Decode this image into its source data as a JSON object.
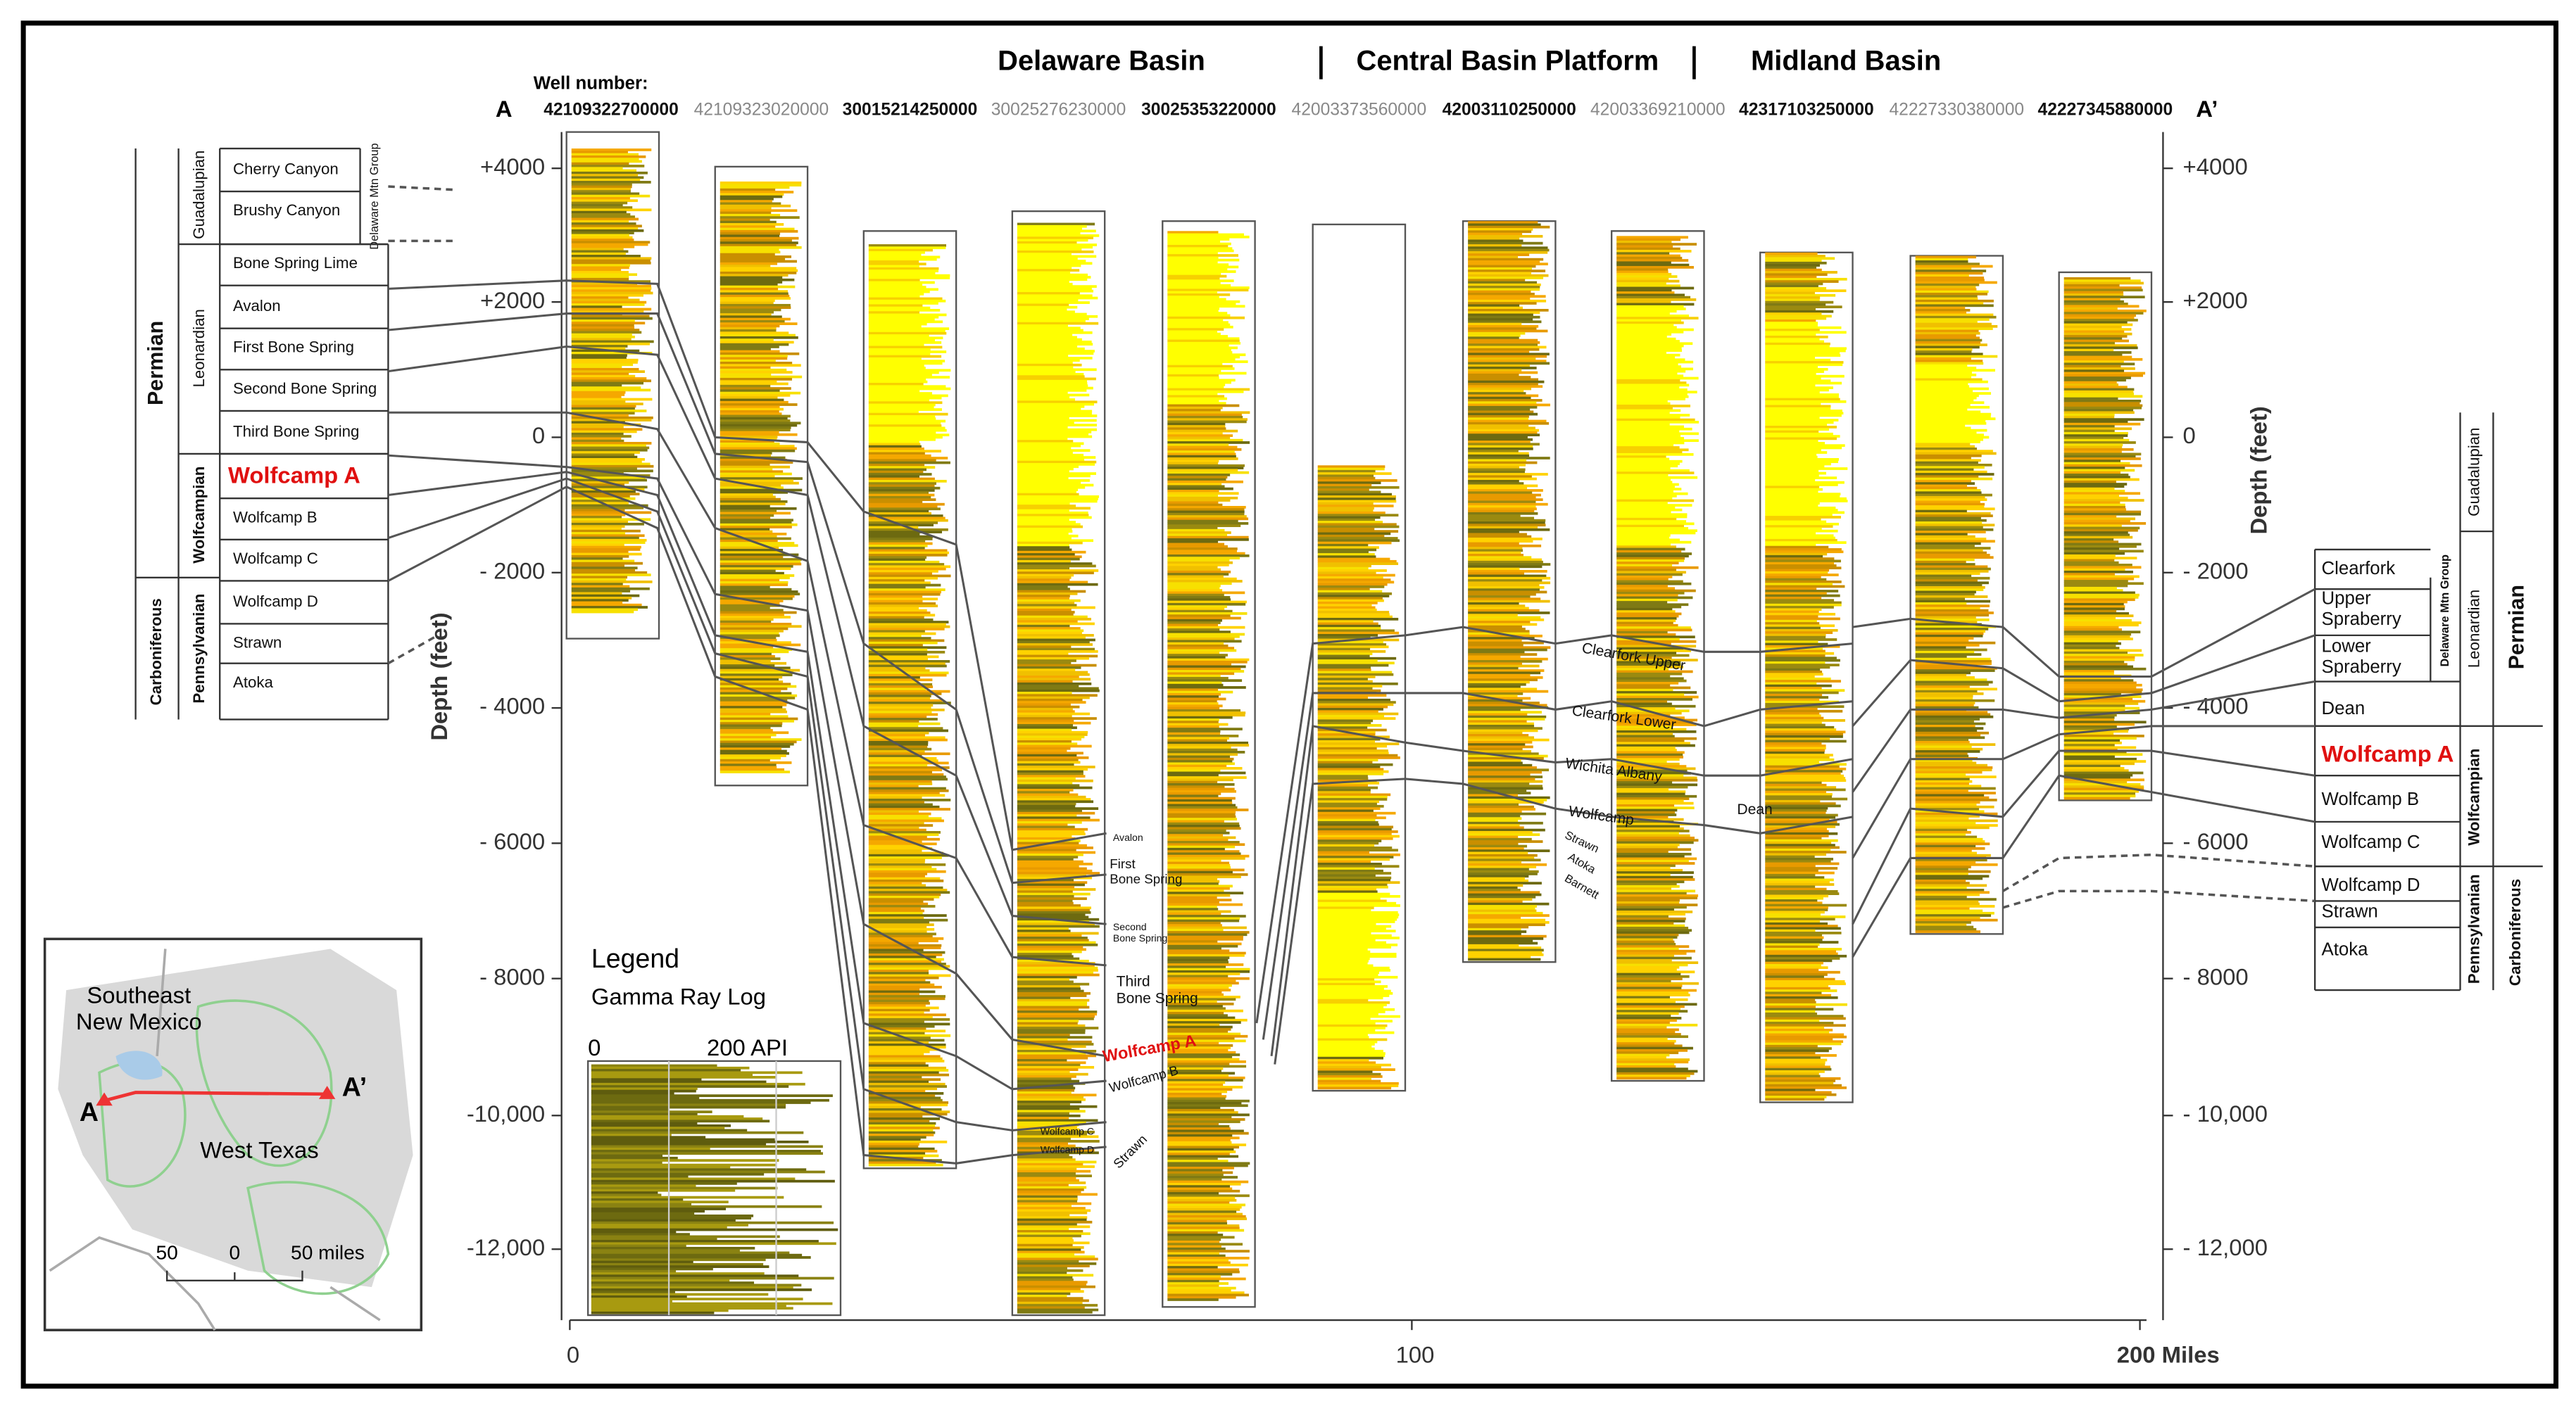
{
  "header": {
    "basins": [
      "Delaware Basin",
      "Central Basin Platform",
      "Midland Basin"
    ],
    "well_label": "Well number:",
    "left_end": "A",
    "right_end": "A’",
    "wells": [
      "42109322700000",
      "42109323020000",
      "30015214250000",
      "30025276230000",
      "30025353220000",
      "42003373560000",
      "42003110250000",
      "42003369210000",
      "42317103250000",
      "42227330380000",
      "42227345880000"
    ]
  },
  "left_axis": {
    "label": "Depth (feet)",
    "ticks": [
      "+4000",
      "+2000",
      "0",
      "- 2000",
      "- 4000",
      "- 6000",
      "- 8000",
      "-10,000",
      "-12,000"
    ]
  },
  "right_axis": {
    "label": "Depth (feet)",
    "ticks": [
      "+4000",
      "+2000",
      "0",
      "- 2000",
      "- 4000",
      "- 6000",
      "- 8000",
      "- 10,000",
      "- 12,000"
    ]
  },
  "x_axis": {
    "ticks": [
      "0",
      "100",
      "200 Miles"
    ]
  },
  "left_column": {
    "systems": [
      "Permian",
      "Carboniferous"
    ],
    "series": [
      "Guadalupian",
      "Leonardian",
      "Wolfcampian",
      "Pennsylvanian"
    ],
    "group": "Delaware Mtn Group",
    "formations": [
      "Cherry Canyon",
      "Brushy Canyon",
      "Bone Spring Lime",
      "Avalon",
      "First Bone Spring",
      "Second Bone Spring",
      "Third Bone Spring",
      "Wolfcamp A",
      "Wolfcamp B",
      "Wolfcamp C",
      "Wolfcamp D",
      "Strawn",
      "Atoka"
    ]
  },
  "right_column": {
    "systems": [
      "Permian",
      "Carboniferous"
    ],
    "series": [
      "Guadalupian",
      "Leonardian",
      "Wolfcampian",
      "Pennsylvanian"
    ],
    "group": "Delaware Mtn Group",
    "formations": [
      "Clearfork",
      "Upper Spraberry",
      "Lower Spraberry",
      "Dean",
      "Wolfcamp A",
      "Wolfcamp B",
      "Wolfcamp C",
      "Wolfcamp D",
      "Strawn",
      "Atoka"
    ]
  },
  "delaware_labels": [
    "Avalon",
    "First Bone Spring",
    "Second Bone Spring",
    "Third Bone Spring",
    "Wolfcamp A",
    "Wolfcamp B",
    "Wolfcamp C",
    "Wolfcamp D",
    "Strawn"
  ],
  "platform_labels": [
    "Clearfork Upper",
    "Clearfork Lower",
    "Wichita Albany",
    "Wolfcamp",
    "Strawn",
    "Atoka",
    "Barnett",
    "Dean"
  ],
  "legend": {
    "title": "Legend",
    "subtitle": "Gamma Ray Log",
    "scale": [
      "0",
      "200 API"
    ]
  },
  "map": {
    "regions": [
      "Southeast New Mexico",
      "West Texas"
    ],
    "points": [
      "A",
      "A’"
    ],
    "scale": [
      "50",
      "0",
      "50 miles"
    ]
  }
}
